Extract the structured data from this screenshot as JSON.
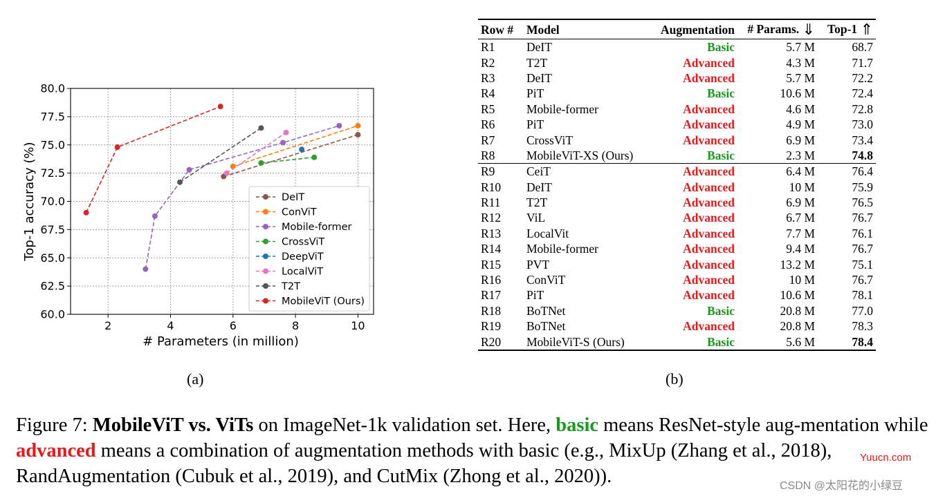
{
  "chart_data": {
    "type": "line",
    "title": "",
    "xlabel": "# Parameters (in million)",
    "ylabel": "Top-1 accuracy (%)",
    "xlim": [
      0.8,
      10.5
    ],
    "ylim": [
      60.0,
      80.0
    ],
    "xticks": [
      2,
      4,
      6,
      8,
      10
    ],
    "yticks": [
      "60.0",
      "62.5",
      "65.0",
      "67.5",
      "70.0",
      "72.5",
      "75.0",
      "77.5",
      "80.0"
    ],
    "grid": true,
    "legend_position": "lower-right",
    "series": [
      {
        "name": "DeIT",
        "color": "#8c564b",
        "points": [
          [
            5.7,
            72.2
          ],
          [
            10.0,
            75.9
          ]
        ]
      },
      {
        "name": "ConViT",
        "color": "#ff7f0e",
        "points": [
          [
            6.0,
            73.1
          ],
          [
            10.0,
            76.7
          ]
        ]
      },
      {
        "name": "Mobile-former",
        "color": "#9467bd",
        "points": [
          [
            3.2,
            64.0
          ],
          [
            3.5,
            68.7
          ],
          [
            4.6,
            72.8
          ],
          [
            7.6,
            75.2
          ],
          [
            9.4,
            76.7
          ]
        ]
      },
      {
        "name": "CrossViT",
        "color": "#2ca02c",
        "points": [
          [
            6.9,
            73.4
          ],
          [
            8.6,
            73.9
          ]
        ]
      },
      {
        "name": "DeepViT",
        "color": "#1f77b4",
        "points": [
          [
            8.2,
            74.6
          ]
        ]
      },
      {
        "name": "LocalViT",
        "color": "#e377c2",
        "points": [
          [
            5.8,
            72.5
          ],
          [
            7.7,
            76.1
          ]
        ]
      },
      {
        "name": "T2T",
        "color": "#555555",
        "points": [
          [
            4.3,
            71.7
          ],
          [
            6.9,
            76.5
          ]
        ]
      },
      {
        "name": "MobileViT (Ours)",
        "color": "#d62728",
        "points": [
          [
            1.3,
            69.0
          ],
          [
            2.3,
            74.8
          ],
          [
            5.6,
            78.4
          ]
        ]
      }
    ]
  },
  "subfig": {
    "a": "(a)",
    "b": "(b)"
  },
  "table": {
    "headers": {
      "row": "Row #",
      "model": "Model",
      "aug": "Augmentation",
      "params": "# Params.",
      "params_arrow": "⇓",
      "top1": "Top-1",
      "top1_arrow": "⇑"
    },
    "rows": [
      {
        "row": "R1",
        "model": "DeIT",
        "aug": "Basic",
        "params": "5.7 M",
        "top1": "68.7"
      },
      {
        "row": "R2",
        "model": "T2T",
        "aug": "Advanced",
        "params": "4.3 M",
        "top1": "71.7"
      },
      {
        "row": "R3",
        "model": "DeIT",
        "aug": "Advanced",
        "params": "5.7 M",
        "top1": "72.2"
      },
      {
        "row": "R4",
        "model": "PiT",
        "aug": "Basic",
        "params": "10.6 M",
        "top1": "72.4"
      },
      {
        "row": "R5",
        "model": "Mobile-former",
        "aug": "Advanced",
        "params": "4.6 M",
        "top1": "72.8"
      },
      {
        "row": "R6",
        "model": "PiT",
        "aug": "Advanced",
        "params": "4.9 M",
        "top1": "73.0"
      },
      {
        "row": "R7",
        "model": "CrossViT",
        "aug": "Advanced",
        "params": "6.9 M",
        "top1": "73.4"
      },
      {
        "row": "R8",
        "model": "MobileViT-XS (Ours)",
        "aug": "Basic",
        "params": "2.3 M",
        "top1": "74.8",
        "bold": true
      },
      {
        "row": "R9",
        "model": "CeiT",
        "aug": "Advanced",
        "params": "6.4 M",
        "top1": "76.4",
        "sep": true
      },
      {
        "row": "R10",
        "model": "DeIT",
        "aug": "Advanced",
        "params": "10 M",
        "top1": "75.9"
      },
      {
        "row": "R11",
        "model": "T2T",
        "aug": "Advanced",
        "params": "6.9 M",
        "top1": "76.5"
      },
      {
        "row": "R12",
        "model": "ViL",
        "aug": "Advanced",
        "params": "6.7 M",
        "top1": "76.7"
      },
      {
        "row": "R13",
        "model": "LocalVit",
        "aug": "Advanced",
        "params": "7.7 M",
        "top1": "76.1"
      },
      {
        "row": "R14",
        "model": "Mobile-former",
        "aug": "Advanced",
        "params": "9.4 M",
        "top1": "76.7"
      },
      {
        "row": "R15",
        "model": "PVT",
        "aug": "Advanced",
        "params": "13.2 M",
        "top1": "75.1"
      },
      {
        "row": "R16",
        "model": "ConViT",
        "aug": "Advanced",
        "params": "10 M",
        "top1": "76.7"
      },
      {
        "row": "R17",
        "model": "PiT",
        "aug": "Advanced",
        "params": "10.6 M",
        "top1": "78.1"
      },
      {
        "row": "R18",
        "model": "BoTNet",
        "aug": "Basic",
        "params": "20.8 M",
        "top1": "77.0"
      },
      {
        "row": "R19",
        "model": "BoTNet",
        "aug": "Advanced",
        "params": "20.8 M",
        "top1": "78.3"
      },
      {
        "row": "R20",
        "model": "MobileViT-S (Ours)",
        "aug": "Basic",
        "params": "5.6 M",
        "top1": "78.4",
        "bold": true
      }
    ]
  },
  "caption": {
    "prefix": "Figure 7: ",
    "bold_title": "MobileViT vs. ViTs",
    "t1": " on ImageNet-1k validation set. Here, ",
    "basic": "basic",
    "t2": " means ResNet-style aug-mentation while ",
    "advanced": "advanced",
    "t3": " means a combination of augmentation methods with basic (e.g., MixUp (Zhang et al., 2018), RandAugmentation (Cubuk et al., 2019), and CutMix (Zhong et al., 2020))."
  },
  "watermarks": {
    "site": "Yuucn.com",
    "csdn": "CSDN @太阳花的小绿豆"
  }
}
